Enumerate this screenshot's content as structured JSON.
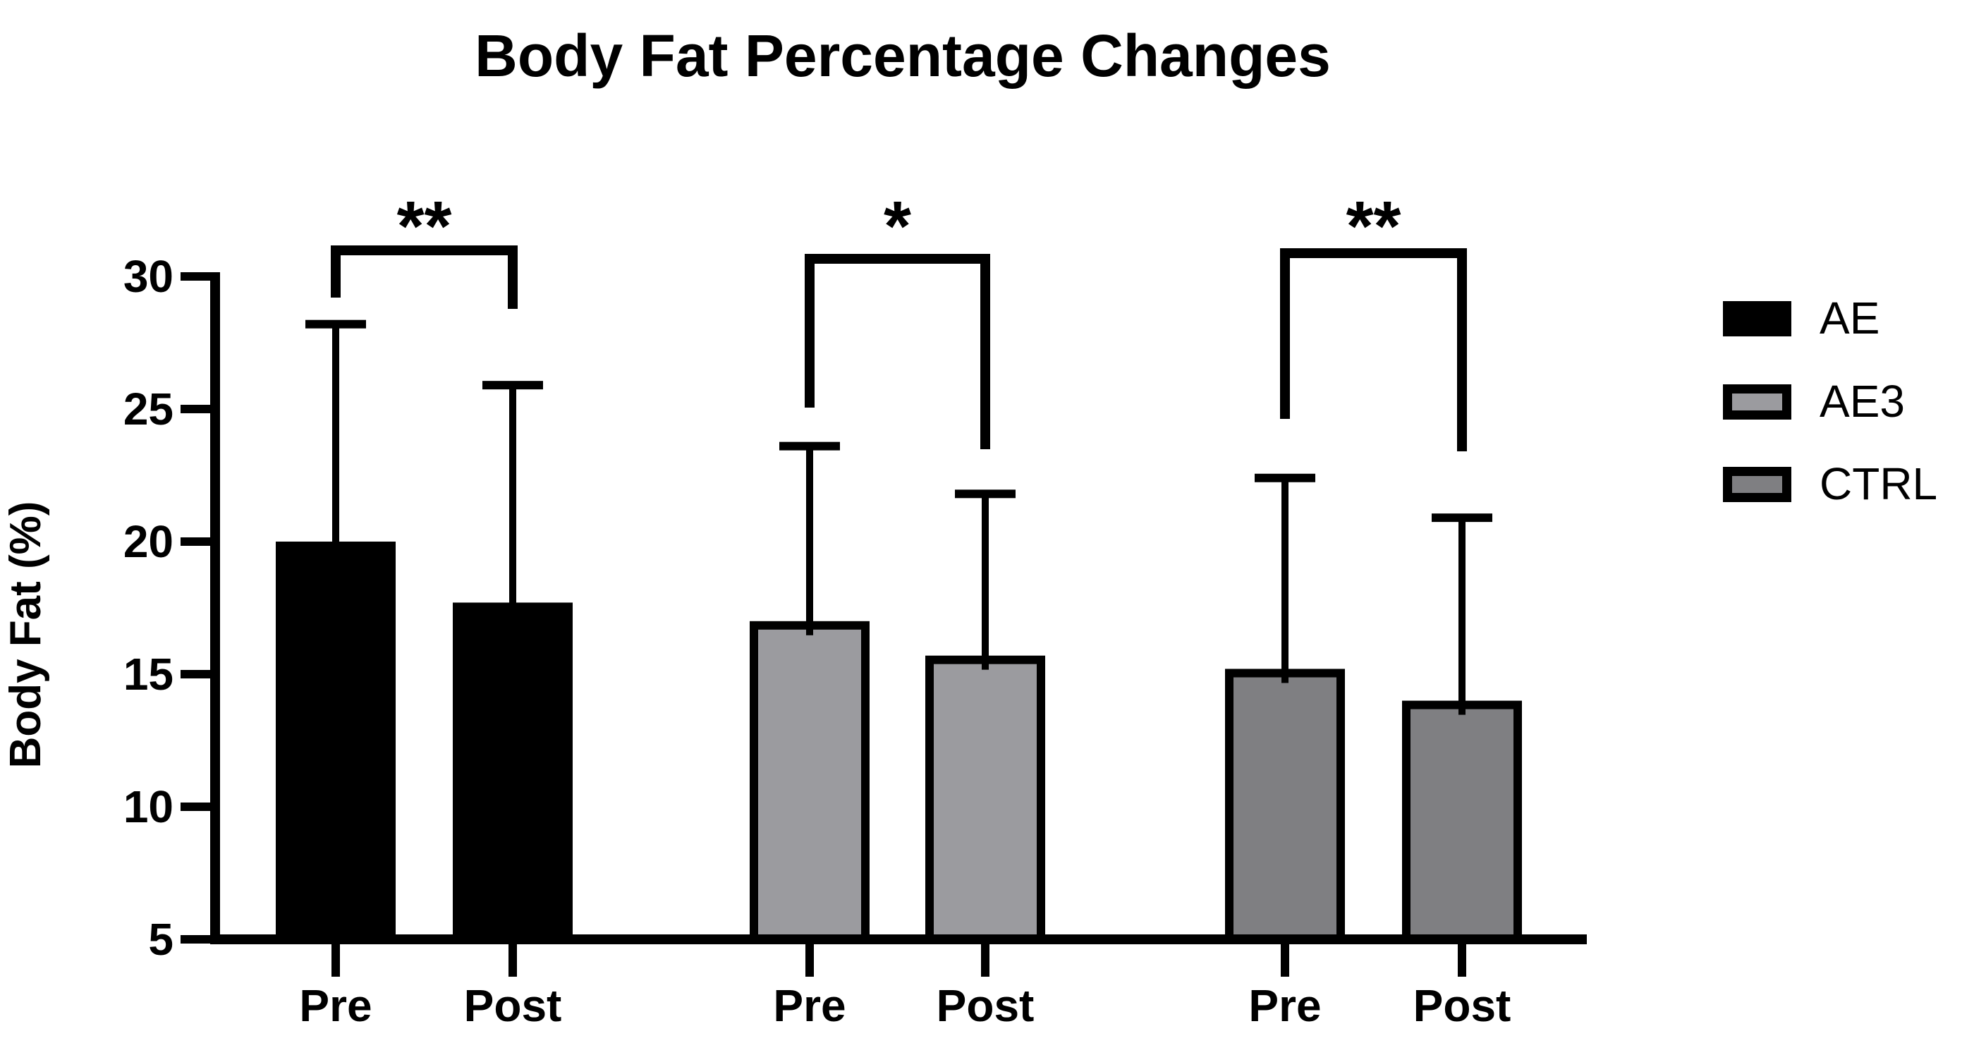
{
  "chart_data": {
    "type": "bar",
    "title": "Body Fat Percentage Changes",
    "xlabel": "",
    "ylabel": "Body Fat (%)",
    "ylim": [
      5,
      30
    ],
    "yticks": [
      5,
      10,
      15,
      20,
      25,
      30
    ],
    "grid": false,
    "legend_position": "right",
    "categories": [
      "Pre",
      "Post"
    ],
    "series": [
      {
        "name": "AE",
        "fill": "#000000",
        "values": [
          20.0,
          17.7
        ],
        "error_tops": [
          28.2,
          25.9
        ],
        "sd": [
          8.2,
          8.2
        ],
        "significance": "**"
      },
      {
        "name": "AE3",
        "fill": "#9b9b9f",
        "values": [
          17.0,
          15.7
        ],
        "error_tops": [
          23.6,
          21.8
        ],
        "sd": [
          6.6,
          6.1
        ],
        "significance": "*"
      },
      {
        "name": "CTRL",
        "fill": "#7f7f82",
        "values": [
          15.2,
          14.0
        ],
        "error_tops": [
          22.4,
          20.9
        ],
        "sd": [
          7.2,
          6.9
        ],
        "significance": "**"
      }
    ],
    "legend": {
      "entries": [
        "AE",
        "AE3",
        "CTRL"
      ]
    },
    "colors": {
      "axis": "#000000",
      "bar_border": "#000000",
      "background": "#ffffff",
      "ae_fill": "#000000",
      "ae3_fill": "#9b9b9f",
      "ctrl_fill": "#7f7f82"
    }
  }
}
